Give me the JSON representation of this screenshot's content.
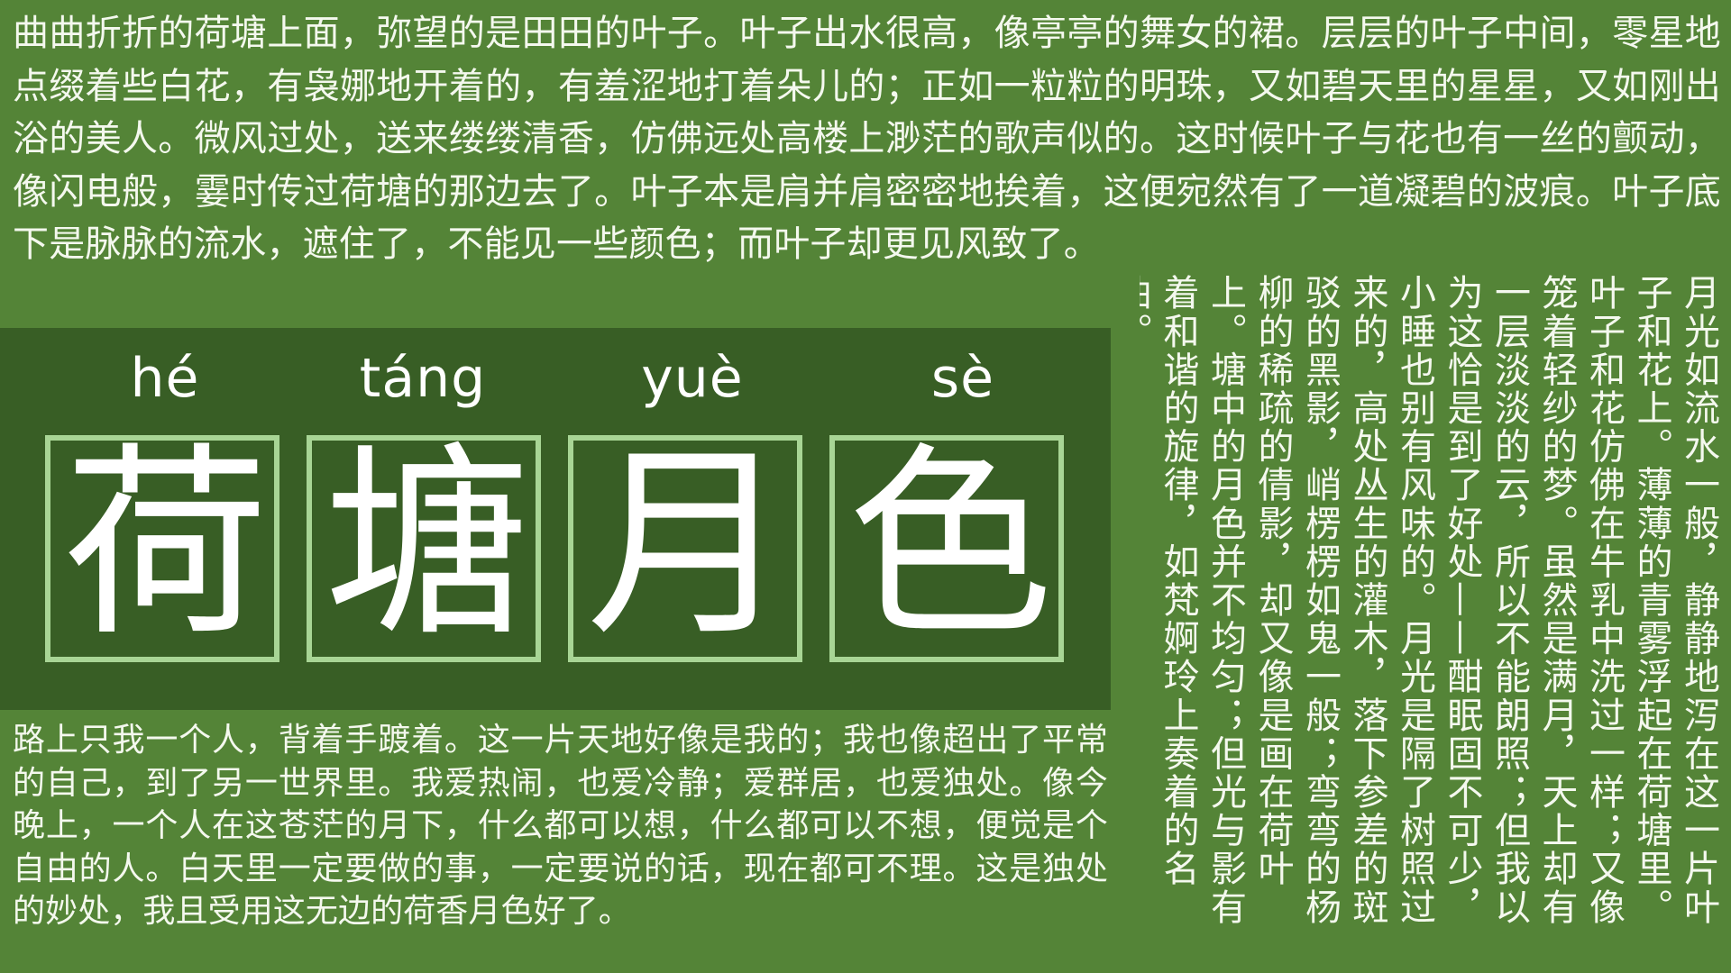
{
  "top_paragraph": "曲曲折折的荷塘上面，弥望的是田田的叶子。叶子出水很高，像亭亭的舞女的裙。层层的叶子中间，零星地点缀着些白花，有袅娜地开着的，有羞涩地打着朵儿的；正如一粒粒的明珠，又如碧天里的星星，又如刚出浴的美人。微风过处，送来缕缕清香，仿佛远处高楼上渺茫的歌声似的。这时候叶子与花也有一丝的颤动，像闪电般，霎时传过荷塘的那边去了。叶子本是肩并肩密密地挨着，这便宛然有了一道凝碧的波痕。叶子底下是脉脉的流水，遮住了，不能见一些颜色；而叶子却更见风致了。",
  "title": {
    "pinyin": [
      "hé",
      "táng",
      "yuè",
      "sè"
    ],
    "characters": [
      "荷",
      "塘",
      "月",
      "色"
    ]
  },
  "bottom_paragraph": "路上只我一个人，背着手踱着。这一片天地好像是我的；我也像超出了平常的自己，到了另一世界里。我爱热闹，也爱冷静；爱群居，也爱独处。像今晚上，一个人在这苍茫的月下，什么都可以想，什么都可以不想，便觉是个自由的人。白天里一定要做的事，一定要说的话，现在都可不理。这是独处的妙处，我且受用这无边的荷香月色好了。",
  "vertical_paragraph": "月光如流水一般，静静地泻在这一片叶子和花上。薄薄的青雾浮起在荷塘里。叶子和花仿佛在牛乳中洗过一样；又像笼着轻纱的梦。虽然是满月，天上却有一层淡淡的云，所以不能朗照；但我以为这恰是到了好处——酣眠固不可少，小睡也别有风味的。月光是隔了树照过来的，高处丛生的灌木，落下参差的斑驳的黑影，峭楞楞如鬼一般；弯弯的杨柳的稀疏的倩影，却又像是画在荷叶上。塘中的月色并不均匀；但光与影有着和谐的旋律，如梵婀玲上奏着的名曲。",
  "colors": {
    "background": "#548437",
    "title_panel": "#385e25",
    "box_border": "#a8d595",
    "text": "#f4f8ee"
  }
}
